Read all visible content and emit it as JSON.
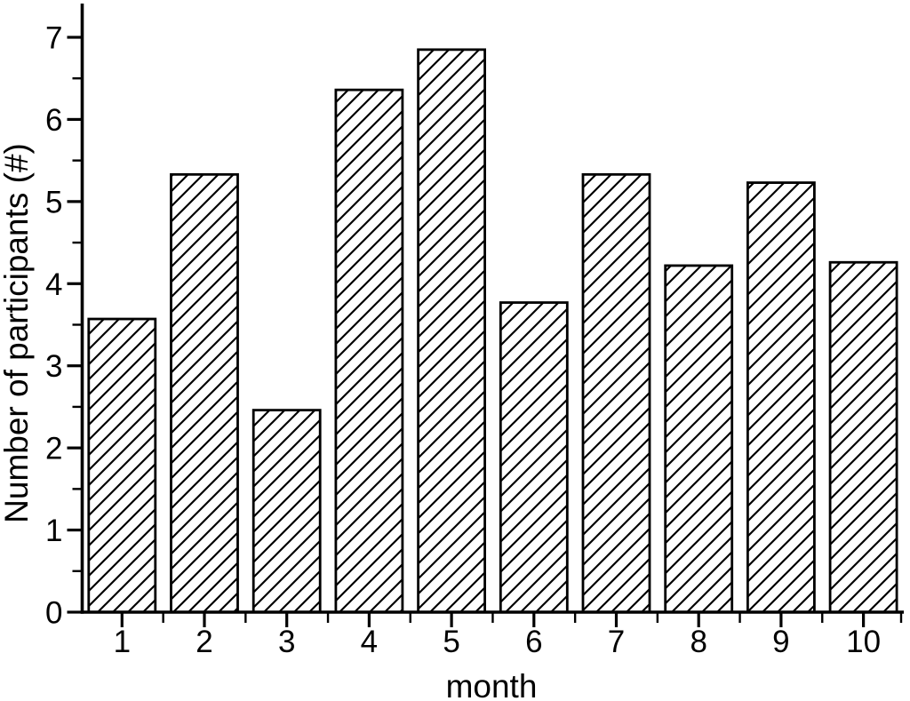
{
  "chart_data": {
    "type": "bar",
    "title": "",
    "xlabel": "month",
    "ylabel": "Number of participants (#)",
    "categories": [
      "1",
      "2",
      "3",
      "4",
      "5",
      "6",
      "7",
      "8",
      "9",
      "10"
    ],
    "values": [
      3.57,
      5.33,
      2.46,
      6.36,
      6.85,
      3.77,
      5.33,
      4.22,
      5.23,
      4.26
    ],
    "series_name": "Number of participants",
    "ylim": [
      0,
      7.4
    ],
    "yticks": [
      0,
      1,
      2,
      3,
      4,
      5,
      6,
      7
    ],
    "y_minor_tick_step": 0.5,
    "x_minor_tick_step": 0.5,
    "grid": false,
    "legend": false,
    "bar_fill_style": "diagonal-hatch",
    "colors": {
      "foreground": "#000000",
      "background": "#ffffff"
    }
  }
}
